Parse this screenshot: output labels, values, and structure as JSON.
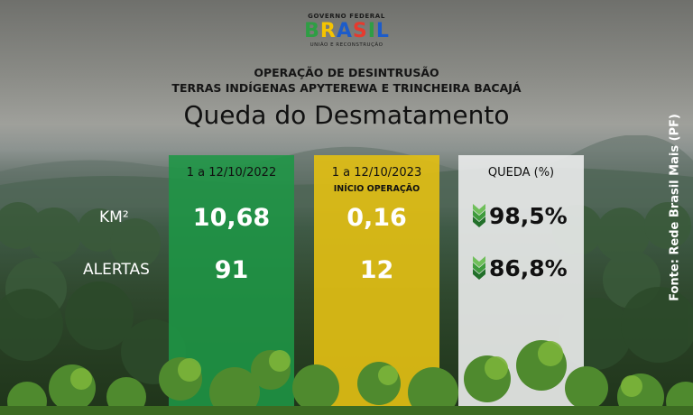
{
  "logo": {
    "top_text": "GOVERNO FEDERAL",
    "word_letters": [
      "B",
      "R",
      "A",
      "S",
      "I",
      "L"
    ],
    "word_colors": [
      "#2e9e44",
      "#f5c400",
      "#1d5cc9",
      "#e63a2e",
      "#2e9e44",
      "#1d5cc9"
    ],
    "bottom_text": "UNIÃO E RECONSTRUÇÃO"
  },
  "header": {
    "line1": "OPERAÇÃO DE DESINTRUSÃO",
    "line2": "TERRAS INDÍGENAS APYTEREWA E TRINCHEIRA BACAJÁ",
    "title": "Queda do Desmatamento"
  },
  "rows": {
    "km_label": "KM²",
    "alert_label": "ALERTAS"
  },
  "panels": {
    "p2022": {
      "header": "1 a 12/10/2022",
      "km": "10,68",
      "alerts": "91",
      "color": "#1e9646"
    },
    "p2023": {
      "header": "1 a 12/10/2023",
      "note": "INÍCIO OPERAÇÃO",
      "km": "0,16",
      "alerts": "12",
      "color": "#e1be14"
    },
    "drop": {
      "header": "QUEDA (%)",
      "km": "98,5%",
      "alerts": "86,8%",
      "arrow_color": "#2e8b3a"
    }
  },
  "source": "Fonte: Rede Brasil Mais (PF)"
}
